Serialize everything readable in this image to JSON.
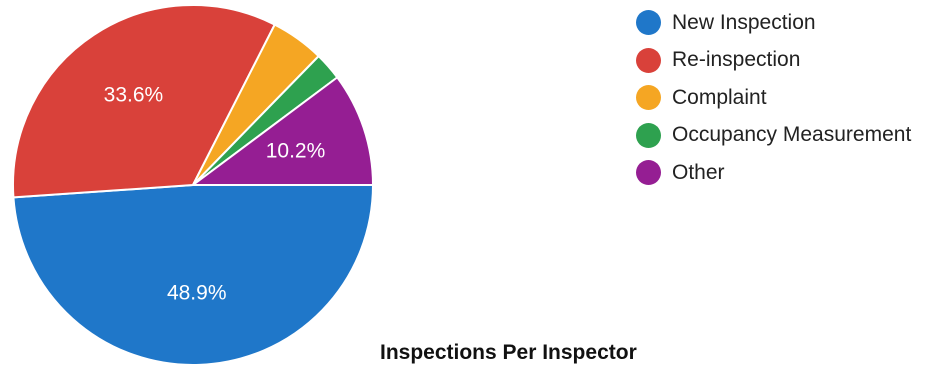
{
  "chart_data": {
    "type": "pie",
    "title": "",
    "slices": [
      {
        "name": "New Inspection",
        "value": 48.9,
        "label": "48.9%",
        "color": "#1f77c9"
      },
      {
        "name": "Re-inspection",
        "value": 33.6,
        "label": "33.6%",
        "color": "#d9413a"
      },
      {
        "name": "Complaint",
        "value": 4.8,
        "label": "",
        "color": "#f5a623"
      },
      {
        "name": "Occupancy Measurement",
        "value": 2.5,
        "label": "",
        "color": "#2ea14f"
      },
      {
        "name": "Other",
        "value": 10.2,
        "label": "10.2%",
        "color": "#951e93"
      }
    ],
    "legend_position": "top-right"
  },
  "next_section": {
    "heading": "Inspections Per Inspector"
  }
}
